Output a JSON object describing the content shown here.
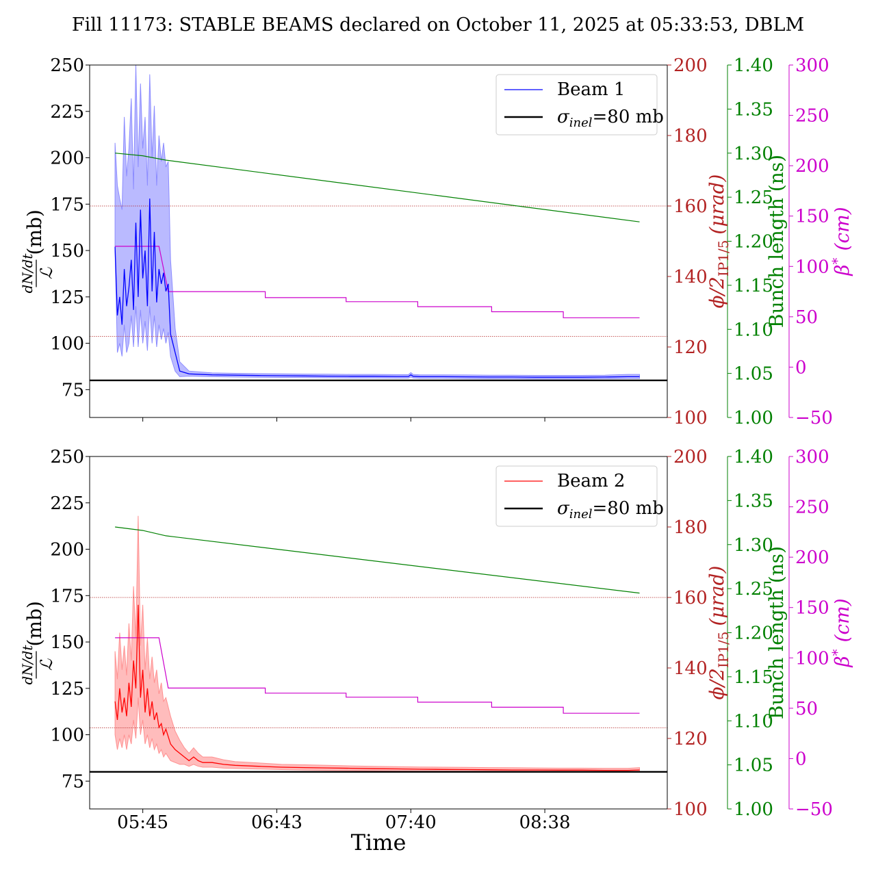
{
  "figure": {
    "title": "Fill 11173: STABLE BEAMS declared on October 11, 2025 at 05:33:53, DBLM",
    "xlabel": "Time"
  },
  "axes_labels": {
    "left_num": "dN/dt",
    "left_den": "ℒ",
    "left_unit": "(mb)",
    "red_phi": "ϕ/2",
    "red_sub": "IP1/5",
    "red_unit": "(μrad)",
    "green": "Bunch length (ns)",
    "magenta_beta": "β",
    "magenta_star": "*",
    "magenta_unit": "(cm)"
  },
  "colors": {
    "beam1": "#0000ff",
    "beam1_band": "#8c8cff",
    "beam2": "#ff0000",
    "beam2_band": "#ff9090",
    "crossing_angle": "#b22222",
    "bunch_length": "#008000",
    "beta_star": "#cc00cc",
    "sigma_inel": "#000000"
  },
  "chart_data": [
    {
      "type": "line",
      "panel": "top",
      "x_unit": "minutes after 05:45",
      "xticks": [
        "05:45",
        "06:43",
        "07:40",
        "08:38"
      ],
      "xtick_values": [
        0,
        58,
        116,
        174
      ],
      "xlim": [
        -23,
        227
      ],
      "axes": {
        "left": {
          "ylim": [
            60,
            250
          ],
          "ticks": [
            75,
            100,
            125,
            150,
            175,
            200,
            225,
            250
          ]
        },
        "crossing_angle": {
          "ylim": [
            100,
            200
          ],
          "ticks": [
            100,
            120,
            140,
            160,
            180,
            200
          ]
        },
        "bunch_length": {
          "ylim": [
            1.0,
            1.4
          ],
          "ticks": [
            "1.00",
            "1.05",
            "1.10",
            "1.15",
            "1.20",
            "1.25",
            "1.30",
            "1.35",
            "1.40"
          ]
        },
        "beta_star": {
          "ylim": [
            -50,
            300
          ],
          "ticks": [
            -50,
            0,
            50,
            100,
            150,
            200,
            250,
            300
          ]
        }
      },
      "legend": {
        "placement": "top-right",
        "entries": [
          "Beam 1",
          "σinel=80 mb"
        ]
      },
      "sigma_inel": 80,
      "series": [
        {
          "name": "Beam 1",
          "axis": "left",
          "x": [
            -12,
            -11,
            -10,
            -9,
            -8,
            -7,
            -6,
            -5,
            -4,
            -3,
            -2,
            -1,
            0,
            1,
            2,
            3,
            4,
            5,
            6,
            7,
            8,
            9,
            10,
            11,
            12,
            14,
            16,
            20,
            30,
            40,
            50,
            60,
            70,
            80,
            90,
            100,
            110,
            115,
            116,
            117,
            120,
            130,
            140,
            150,
            160,
            170,
            180,
            190,
            200,
            210,
            215
          ],
          "y": [
            152,
            115,
            125,
            110,
            140,
            120,
            130,
            145,
            118,
            165,
            125,
            172,
            135,
            150,
            120,
            178,
            128,
            160,
            122,
            140,
            132,
            138,
            128,
            132,
            105,
            95,
            85,
            83.5,
            83,
            82.8,
            82.6,
            82.5,
            82.4,
            82.3,
            82.2,
            82.2,
            82.1,
            82.1,
            83,
            82.2,
            82,
            82,
            81.9,
            81.8,
            81.8,
            81.7,
            81.7,
            81.7,
            81.8,
            82,
            82
          ],
          "lower": [
            150,
            95,
            100,
            93,
            110,
            95,
            100,
            115,
            98,
            120,
            98,
            118,
            100,
            112,
            96,
            120,
            100,
            115,
            98,
            110,
            102,
            108,
            100,
            106,
            93,
            85,
            82,
            82.3,
            82,
            81.8,
            81.7,
            81.6,
            81.5,
            81.4,
            81.3,
            81.3,
            81.2,
            81.2,
            81.8,
            81.3,
            81.1,
            81.1,
            81,
            80.9,
            80.9,
            80.8,
            80.8,
            80.8,
            80.9,
            81,
            81
          ],
          "upper": [
            208,
            185,
            178,
            172,
            222,
            190,
            205,
            232,
            183,
            250,
            195,
            240,
            205,
            222,
            185,
            245,
            200,
            228,
            185,
            212,
            198,
            208,
            195,
            198,
            145,
            108,
            90,
            85,
            84,
            83.8,
            83.6,
            83.5,
            83.4,
            83.3,
            83.2,
            83.2,
            83.1,
            83.1,
            84.2,
            83.2,
            83,
            83,
            82.9,
            82.8,
            82.8,
            82.7,
            82.7,
            82.7,
            82.8,
            83.2,
            83.2
          ]
        },
        {
          "name": "Crossing angle",
          "axis": "crossing_angle",
          "x": [
            -23,
            227
          ],
          "y": [
            160,
            160
          ]
        },
        {
          "name": "Crossing angle",
          "axis": "crossing_angle",
          "x": [
            -23,
            227
          ],
          "y": [
            123,
            123
          ]
        },
        {
          "name": "Bunch length",
          "axis": "bunch_length",
          "x": [
            -12,
            0,
            10,
            215
          ],
          "y": [
            1.3,
            1.297,
            1.292,
            1.222
          ]
        },
        {
          "name": "β*",
          "axis": "beta_star",
          "x": [
            -12,
            7,
            11,
            53,
            53,
            88,
            88,
            119,
            119,
            151,
            151,
            182,
            182,
            215
          ],
          "y": [
            120,
            120,
            75,
            75,
            69,
            69,
            65,
            65,
            60,
            60,
            55,
            55,
            49,
            49
          ]
        }
      ]
    },
    {
      "type": "line",
      "panel": "bottom",
      "x_unit": "minutes after 05:45",
      "xticks": [
        "05:45",
        "06:43",
        "07:40",
        "08:38"
      ],
      "xtick_values": [
        0,
        58,
        116,
        174
      ],
      "xlim": [
        -23,
        227
      ],
      "axes": {
        "left": {
          "ylim": [
            60,
            250
          ],
          "ticks": [
            75,
            100,
            125,
            150,
            175,
            200,
            225,
            250
          ]
        },
        "crossing_angle": {
          "ylim": [
            100,
            200
          ],
          "ticks": [
            100,
            120,
            140,
            160,
            180,
            200
          ]
        },
        "bunch_length": {
          "ylim": [
            1.0,
            1.4
          ],
          "ticks": [
            "1.00",
            "1.05",
            "1.10",
            "1.15",
            "1.20",
            "1.25",
            "1.30",
            "1.35",
            "1.40"
          ]
        },
        "beta_star": {
          "ylim": [
            -50,
            300
          ],
          "ticks": [
            -50,
            0,
            50,
            100,
            150,
            200,
            250,
            300
          ]
        }
      },
      "legend": {
        "placement": "top-right",
        "entries": [
          "Beam 2",
          "σinel=80 mb"
        ]
      },
      "sigma_inel": 80,
      "series": [
        {
          "name": "Beam 2",
          "axis": "left",
          "x": [
            -12,
            -11,
            -10,
            -9,
            -8,
            -7,
            -6,
            -5,
            -4,
            -3,
            -2,
            -1,
            0,
            1,
            2,
            3,
            4,
            5,
            6,
            7,
            8,
            9,
            10,
            12,
            14,
            16,
            18,
            20,
            22,
            24,
            26,
            28,
            30,
            35,
            40,
            50,
            60,
            70,
            80,
            90,
            100,
            110,
            120,
            130,
            140,
            150,
            160,
            170,
            180,
            190,
            200,
            210,
            215
          ],
          "y": [
            118,
            108,
            125,
            112,
            120,
            110,
            128,
            115,
            140,
            125,
            170,
            120,
            135,
            112,
            125,
            110,
            118,
            108,
            112,
            104,
            106,
            100,
            103,
            95,
            92,
            90,
            88,
            86,
            88,
            86,
            85,
            85,
            85,
            84,
            83.5,
            83,
            82.5,
            82.3,
            82.1,
            81.9,
            81.7,
            81.6,
            81.4,
            81.3,
            81.2,
            81.1,
            81,
            81,
            80.9,
            80.9,
            80.8,
            80.8,
            81
          ],
          "lower": [
            100,
            92,
            98,
            93,
            100,
            92,
            100,
            95,
            108,
            98,
            120,
            100,
            108,
            95,
            100,
            93,
            98,
            92,
            95,
            90,
            92,
            88,
            90,
            86,
            85,
            84,
            84,
            83,
            84,
            83,
            82.5,
            82.5,
            82.5,
            82,
            81.8,
            81.5,
            81.2,
            81,
            80.8,
            80.7,
            80.5,
            80.4,
            80.3,
            80.2,
            80.1,
            80,
            80,
            80,
            79.9,
            79.9,
            79.9,
            79.9,
            80
          ],
          "upper": [
            145,
            130,
            155,
            135,
            148,
            132,
            160,
            140,
            180,
            152,
            218,
            148,
            170,
            135,
            152,
            130,
            142,
            128,
            135,
            122,
            128,
            118,
            120,
            110,
            102,
            97,
            93,
            90,
            93,
            90,
            88,
            88,
            88,
            86.5,
            85.5,
            84.8,
            84,
            83.8,
            83.5,
            83.2,
            83,
            82.8,
            82.6,
            82.5,
            82.4,
            82.3,
            82.2,
            82.1,
            82,
            82,
            81.9,
            81.9,
            82.3
          ]
        },
        {
          "name": "Crossing angle",
          "axis": "crossing_angle",
          "x": [
            -23,
            227
          ],
          "y": [
            160,
            160
          ]
        },
        {
          "name": "Crossing angle",
          "axis": "crossing_angle",
          "x": [
            -23,
            227
          ],
          "y": [
            123,
            123
          ]
        },
        {
          "name": "Bunch length",
          "axis": "bunch_length",
          "x": [
            -12,
            0,
            10,
            215
          ],
          "y": [
            1.32,
            1.316,
            1.31,
            1.245
          ]
        },
        {
          "name": "β*",
          "axis": "beta_star",
          "x": [
            -12,
            7,
            11,
            53,
            53,
            88,
            88,
            119,
            119,
            151,
            151,
            182,
            182,
            215
          ],
          "y": [
            120,
            120,
            70,
            70,
            65,
            65,
            61,
            61,
            56,
            56,
            51,
            51,
            45,
            45
          ]
        }
      ]
    }
  ]
}
